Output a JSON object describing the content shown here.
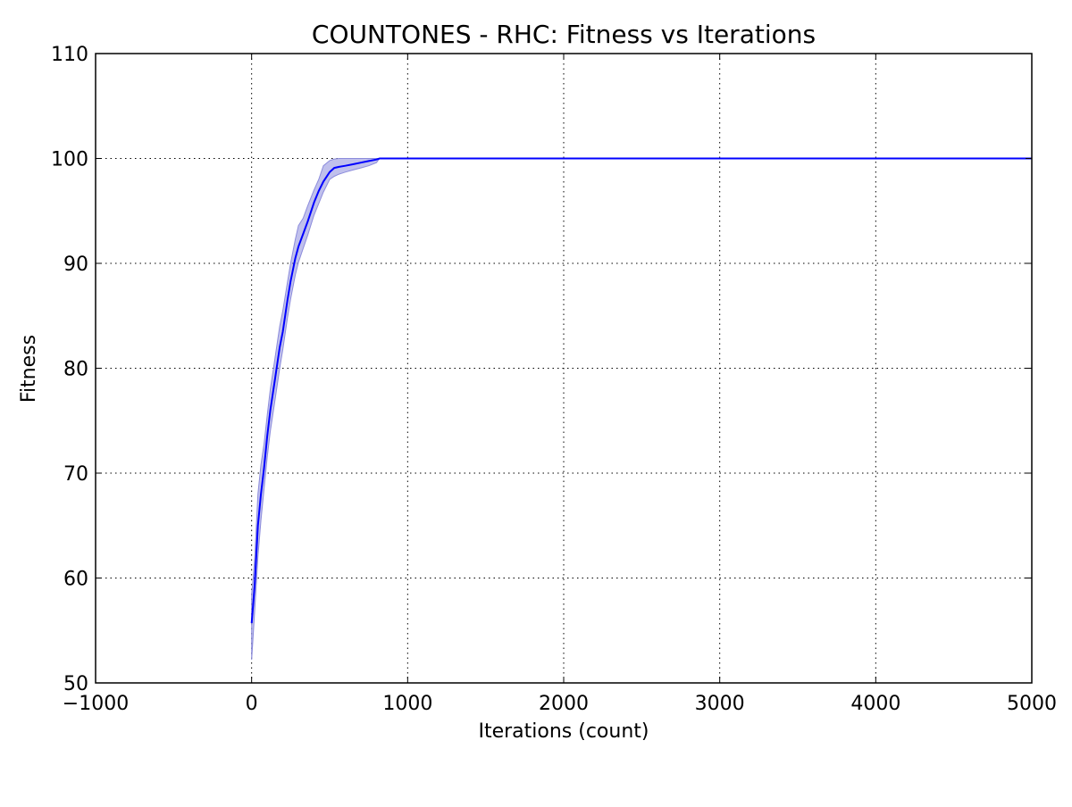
{
  "chart_data": {
    "type": "line",
    "title": "COUNTONES - RHC: Fitness vs Iterations",
    "xlabel": "Iterations (count)",
    "ylabel": "Fitness",
    "xlim": [
      -1000,
      5000
    ],
    "ylim": [
      50,
      110
    ],
    "xticks": [
      -1000,
      0,
      1000,
      2000,
      3000,
      4000,
      5000
    ],
    "xtick_labels": [
      "−1000",
      "0",
      "1000",
      "2000",
      "3000",
      "4000",
      "5000"
    ],
    "yticks": [
      50,
      60,
      70,
      80,
      90,
      100,
      110
    ],
    "ytick_labels": [
      "50",
      "60",
      "70",
      "80",
      "90",
      "100",
      "110"
    ],
    "grid": true,
    "grid_style": "dotted",
    "legend": "none",
    "series": [
      {
        "color": "#0000ff",
        "band_color": "#8c8cdc",
        "x": [
          0,
          10,
          20,
          40,
          60,
          80,
          100,
          120,
          150,
          180,
          200,
          230,
          250,
          280,
          300,
          330,
          360,
          400,
          430,
          460,
          500,
          530,
          560,
          600,
          650,
          700,
          750,
          800,
          820,
          900,
          1000,
          2000,
          3000,
          4000,
          5000
        ],
        "y": [
          55.7,
          57.5,
          59.5,
          65.0,
          68.0,
          70.5,
          73.5,
          76.0,
          79.0,
          82.0,
          83.5,
          86.5,
          88.3,
          90.5,
          91.6,
          92.8,
          94.0,
          95.8,
          96.9,
          97.8,
          98.7,
          99.1,
          99.2,
          99.3,
          99.45,
          99.6,
          99.75,
          99.9,
          100,
          100,
          100,
          100,
          100,
          100,
          100
        ],
        "lower": [
          52.2,
          54.5,
          57.0,
          62.0,
          65.5,
          68.5,
          71.5,
          74.0,
          77.0,
          80.0,
          81.8,
          84.8,
          86.6,
          88.9,
          90.1,
          91.4,
          92.7,
          94.6,
          95.7,
          96.8,
          98.0,
          98.3,
          98.5,
          98.7,
          98.9,
          99.1,
          99.3,
          99.6,
          100,
          100,
          100,
          100,
          100,
          100,
          100
        ],
        "upper": [
          58.5,
          60.0,
          62.0,
          68.0,
          70.8,
          72.8,
          75.5,
          78.0,
          81.0,
          84.0,
          85.5,
          88.2,
          90.0,
          92.3,
          93.6,
          94.3,
          95.5,
          97.0,
          98.0,
          99.3,
          99.8,
          99.95,
          100,
          100,
          100,
          100,
          100,
          100,
          100,
          100,
          100,
          100,
          100,
          100,
          100
        ]
      }
    ]
  }
}
